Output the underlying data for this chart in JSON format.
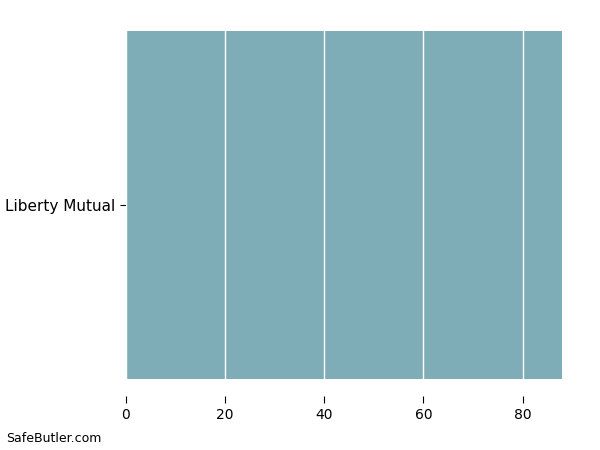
{
  "categories": [
    "Liberty Mutual"
  ],
  "values": [
    88
  ],
  "bar_color": "#7EADB8",
  "xlim": [
    0,
    92
  ],
  "xticks": [
    0,
    20,
    40,
    60,
    80
  ],
  "background_color": "#ffffff",
  "grid_color": "#f0f0f0",
  "watermark": "SafeButler.com",
  "bar_height": 0.98,
  "figsize": [
    6.0,
    4.5
  ],
  "dpi": 100,
  "tick_fontsize": 10,
  "ytick_fontsize": 11,
  "watermark_fontsize": 9
}
